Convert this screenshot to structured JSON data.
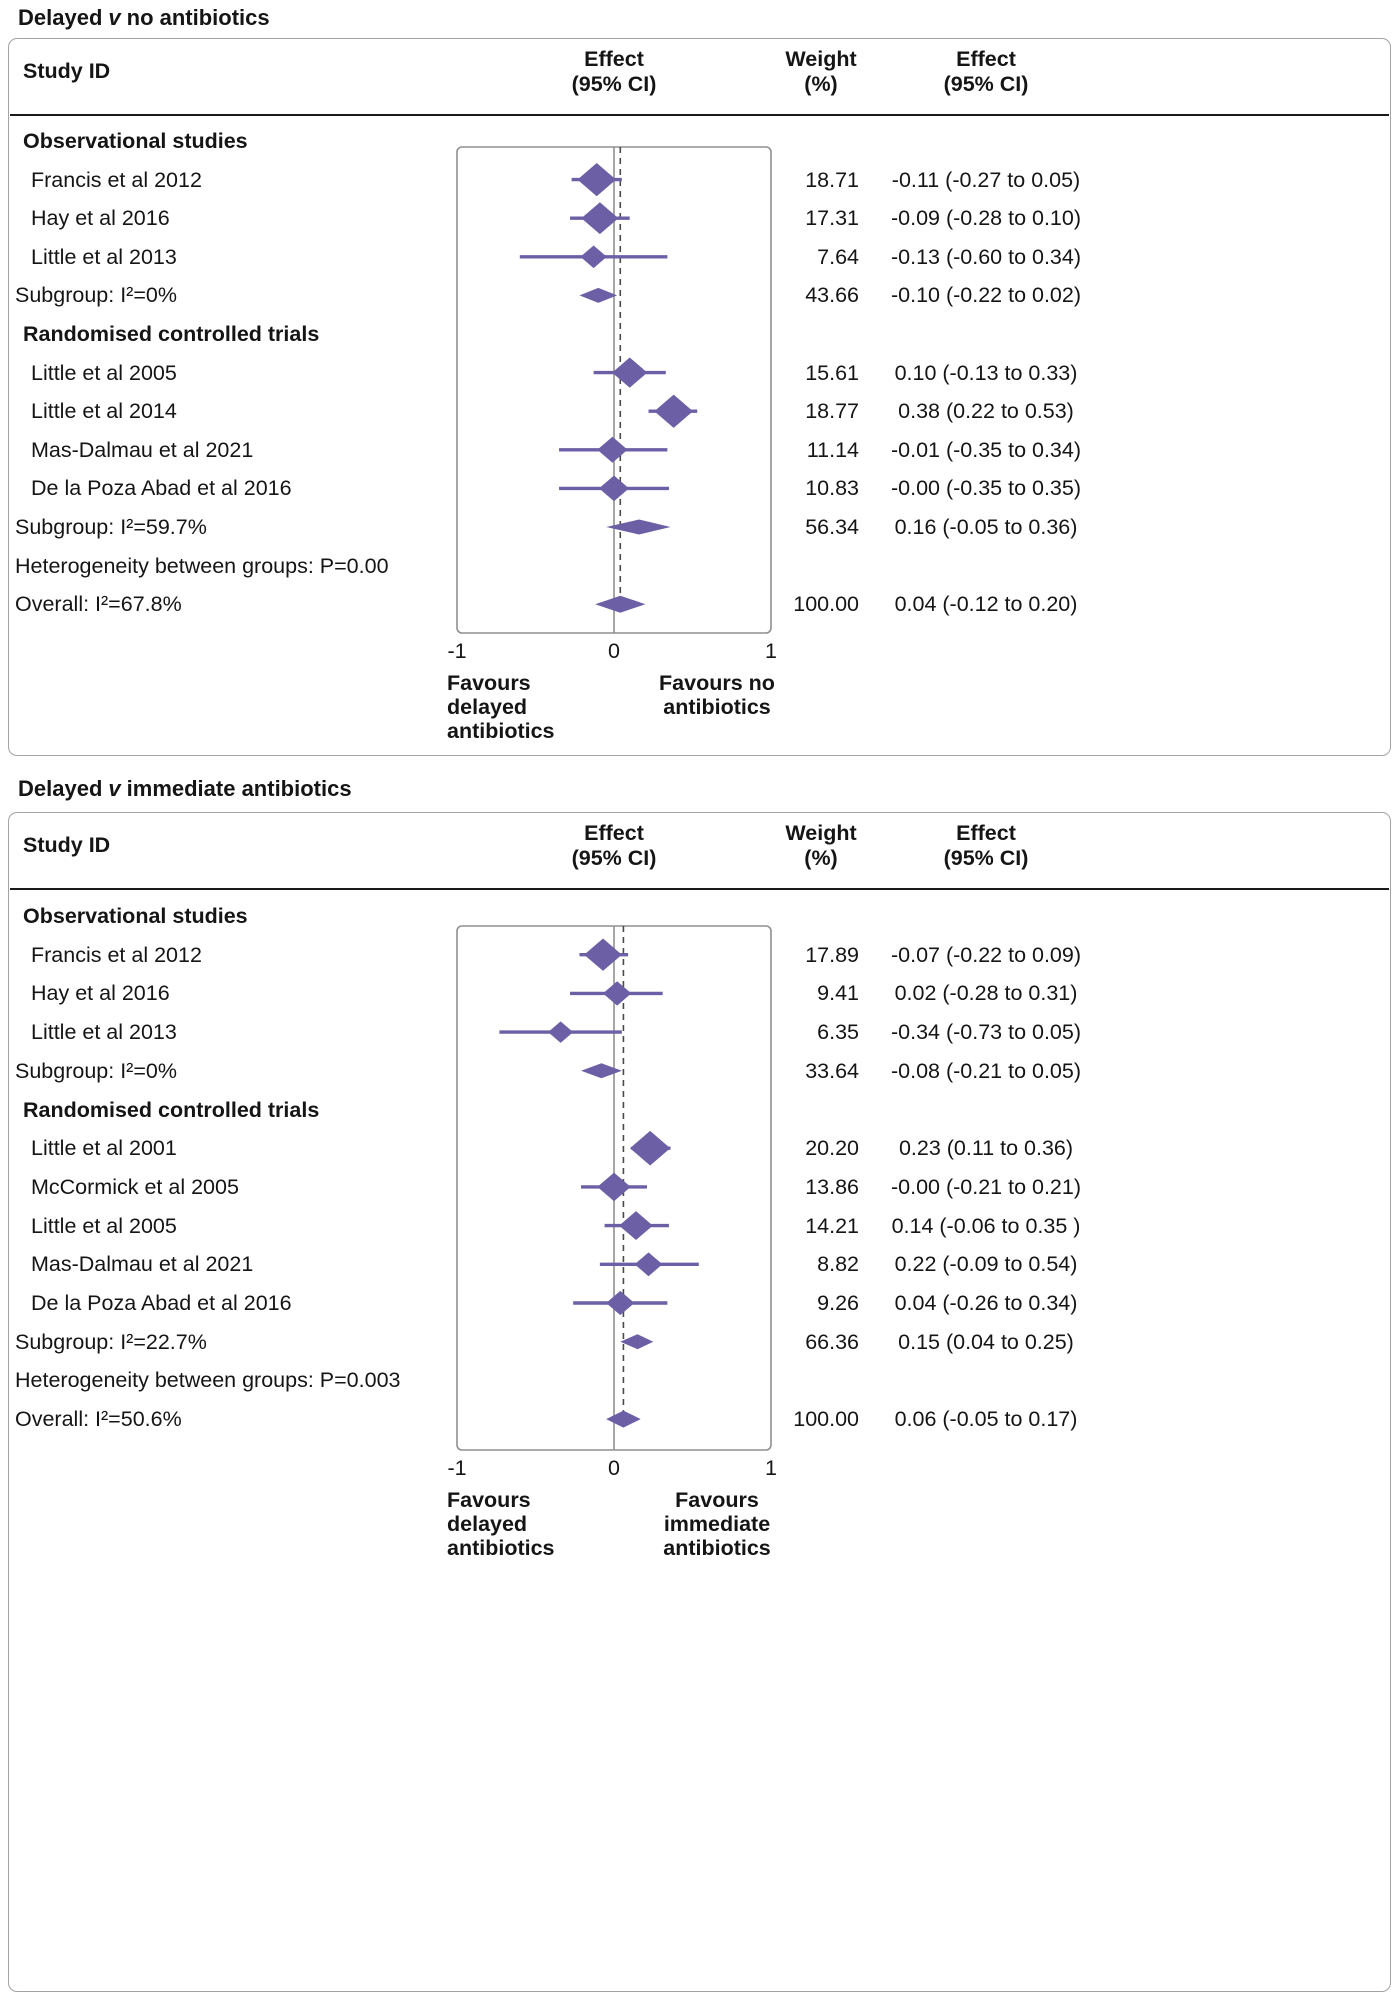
{
  "figure_colors": {
    "accent": "#6d5fa5",
    "frame": "#8f8f8f",
    "dashed_line": "#4a4a4a",
    "text": "#151515"
  },
  "chart_data": [
    {
      "type": "forest",
      "title": {
        "prefix": "Delayed",
        "versus": "v",
        "suffix": "no antibiotics"
      },
      "columns": {
        "study": "Study ID",
        "effect_plot": [
          "Effect",
          "(95% CI)"
        ],
        "weight": [
          "Weight",
          "(%)"
        ],
        "effect_text": [
          "Effect",
          "(95% CI)"
        ]
      },
      "x_axis": {
        "min": -1,
        "max": 1,
        "ticks": [
          "-1",
          "0",
          "1"
        ],
        "tick_values": [
          -1,
          0,
          1
        ]
      },
      "null_line": 0,
      "overall_estimate_line": 0.04,
      "favours_left": [
        "Favours",
        "delayed",
        "antibiotics"
      ],
      "favours_right": [
        "Favours no",
        "antibiotics"
      ],
      "rows": [
        {
          "kind": "group",
          "label": "Observational studies"
        },
        {
          "kind": "study",
          "label": "Francis et al 2012",
          "estimate": -0.11,
          "ci_low": -0.27,
          "ci_high": 0.05,
          "weight": 18.71,
          "weight_text": "18.71",
          "effect_text": "-0.11 (-0.27 to 0.05)"
        },
        {
          "kind": "study",
          "label": "Hay et al 2016",
          "estimate": -0.09,
          "ci_low": -0.28,
          "ci_high": 0.1,
          "weight": 17.31,
          "weight_text": "17.31",
          "effect_text": "-0.09 (-0.28 to 0.10)"
        },
        {
          "kind": "study",
          "label": "Little et al 2013",
          "estimate": -0.13,
          "ci_low": -0.6,
          "ci_high": 0.34,
          "weight": 7.64,
          "weight_text": "7.64",
          "effect_text": "-0.13 (-0.60 to 0.34)"
        },
        {
          "kind": "subgroup",
          "label": "Subgroup: I²=0%",
          "estimate": -0.1,
          "ci_low": -0.22,
          "ci_high": 0.02,
          "weight_text": "43.66",
          "effect_text": "-0.10 (-0.22 to 0.02)"
        },
        {
          "kind": "group",
          "label": "Randomised controlled trials"
        },
        {
          "kind": "study",
          "label": "Little et al 2005",
          "estimate": 0.1,
          "ci_low": -0.13,
          "ci_high": 0.33,
          "weight": 15.61,
          "weight_text": "15.61",
          "effect_text": "0.10 (-0.13 to 0.33)"
        },
        {
          "kind": "study",
          "label": "Little et al 2014",
          "estimate": 0.38,
          "ci_low": 0.22,
          "ci_high": 0.53,
          "weight": 18.77,
          "weight_text": "18.77",
          "effect_text": "0.38 (0.22 to 0.53)"
        },
        {
          "kind": "study",
          "label": "Mas-Dalmau et al 2021",
          "estimate": -0.01,
          "ci_low": -0.35,
          "ci_high": 0.34,
          "weight": 11.14,
          "weight_text": "11.14",
          "effect_text": "-0.01 (-0.35 to 0.34)"
        },
        {
          "kind": "study",
          "label": "De la Poza Abad et al 2016",
          "estimate": -0.0,
          "ci_low": -0.35,
          "ci_high": 0.35,
          "weight": 10.83,
          "weight_text": "10.83",
          "effect_text": "-0.00 (-0.35 to 0.35)"
        },
        {
          "kind": "subgroup",
          "label": "Subgroup: I²=59.7%",
          "estimate": 0.16,
          "ci_low": -0.05,
          "ci_high": 0.36,
          "weight_text": "56.34",
          "effect_text": "0.16 (-0.05 to 0.36)"
        },
        {
          "kind": "text",
          "label": "Heterogeneity between groups: P=0.00"
        },
        {
          "kind": "overall",
          "label": "Overall: I²=67.8%",
          "estimate": 0.04,
          "ci_low": -0.12,
          "ci_high": 0.2,
          "weight_text": "100.00",
          "effect_text": "0.04 (-0.12 to 0.20)"
        }
      ]
    },
    {
      "type": "forest",
      "title": {
        "prefix": "Delayed",
        "versus": "v",
        "suffix": "immediate antibiotics"
      },
      "columns": {
        "study": "Study ID",
        "effect_plot": [
          "Effect",
          "(95% CI)"
        ],
        "weight": [
          "Weight",
          "(%)"
        ],
        "effect_text": [
          "Effect",
          "(95% CI)"
        ]
      },
      "x_axis": {
        "min": -1,
        "max": 1,
        "ticks": [
          "-1",
          "0",
          "1"
        ],
        "tick_values": [
          -1,
          0,
          1
        ]
      },
      "null_line": 0,
      "overall_estimate_line": 0.06,
      "favours_left": [
        "Favours",
        "delayed",
        "antibiotics"
      ],
      "favours_right": [
        "Favours",
        "immediate",
        "antibiotics"
      ],
      "rows": [
        {
          "kind": "group",
          "label": "Observational studies"
        },
        {
          "kind": "study",
          "label": "Francis et al 2012",
          "estimate": -0.07,
          "ci_low": -0.22,
          "ci_high": 0.09,
          "weight": 17.89,
          "weight_text": "17.89",
          "effect_text": "-0.07 (-0.22 to 0.09)"
        },
        {
          "kind": "study",
          "label": "Hay et al 2016",
          "estimate": 0.02,
          "ci_low": -0.28,
          "ci_high": 0.31,
          "weight": 9.41,
          "weight_text": "9.41",
          "effect_text": "0.02 (-0.28 to 0.31)"
        },
        {
          "kind": "study",
          "label": "Little et al 2013",
          "estimate": -0.34,
          "ci_low": -0.73,
          "ci_high": 0.05,
          "weight": 6.35,
          "weight_text": "6.35",
          "effect_text": "-0.34 (-0.73 to 0.05)"
        },
        {
          "kind": "subgroup",
          "label": "Subgroup: I²=0%",
          "estimate": -0.08,
          "ci_low": -0.21,
          "ci_high": 0.05,
          "weight_text": "33.64",
          "effect_text": "-0.08 (-0.21 to 0.05)"
        },
        {
          "kind": "group",
          "label": "Randomised controlled trials"
        },
        {
          "kind": "study",
          "label": "Little et al 2001",
          "estimate": 0.23,
          "ci_low": 0.11,
          "ci_high": 0.36,
          "weight": 20.2,
          "weight_text": "20.20",
          "effect_text": "0.23 (0.11 to 0.36)"
        },
        {
          "kind": "study",
          "label": "McCormick et al 2005",
          "estimate": -0.0,
          "ci_low": -0.21,
          "ci_high": 0.21,
          "weight": 13.86,
          "weight_text": "13.86",
          "effect_text": "-0.00 (-0.21 to 0.21)"
        },
        {
          "kind": "study",
          "label": "Little et al 2005",
          "estimate": 0.14,
          "ci_low": -0.06,
          "ci_high": 0.35,
          "weight": 14.21,
          "weight_text": "14.21",
          "effect_text": "0.14 (-0.06 to 0.35 )"
        },
        {
          "kind": "study",
          "label": "Mas-Dalmau et al 2021",
          "estimate": 0.22,
          "ci_low": -0.09,
          "ci_high": 0.54,
          "weight": 8.82,
          "weight_text": "8.82",
          "effect_text": "0.22 (-0.09 to 0.54)"
        },
        {
          "kind": "study",
          "label": "De la Poza Abad et al 2016",
          "estimate": 0.04,
          "ci_low": -0.26,
          "ci_high": 0.34,
          "weight": 9.26,
          "weight_text": "9.26",
          "effect_text": "0.04 (-0.26 to 0.34)"
        },
        {
          "kind": "subgroup",
          "label": "Subgroup: I²=22.7%",
          "estimate": 0.15,
          "ci_low": 0.04,
          "ci_high": 0.25,
          "weight_text": "66.36",
          "effect_text": "0.15 (0.04 to 0.25)"
        },
        {
          "kind": "text",
          "label": "Heterogeneity between groups: P=0.003"
        },
        {
          "kind": "overall",
          "label": "Overall: I²=50.6%",
          "estimate": 0.06,
          "ci_low": -0.05,
          "ci_high": 0.17,
          "weight_text": "100.00",
          "effect_text": "0.06 (-0.05 to 0.17)"
        }
      ]
    }
  ]
}
